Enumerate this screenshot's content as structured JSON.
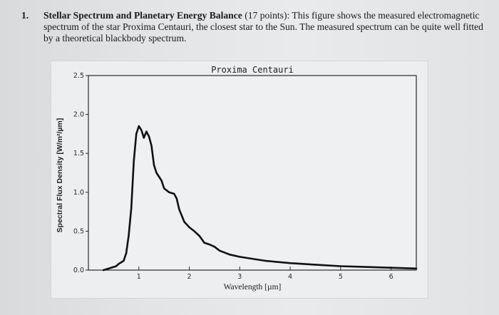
{
  "question": {
    "number": "1.",
    "title": "Stellar Spectrum and Planetary Energy Balance",
    "points": "(17 points):",
    "body": "This figure shows the measured electromagnetic spectrum of the star Proxima Centauri, the closest star to the Sun. The measured spectrum can be quite well fitted by a theoretical blackbody spectrum."
  },
  "chart_data": {
    "type": "line",
    "title": "Proxima Centauri",
    "xlabel": "Wavelength [µm]",
    "ylabel": "Spectral Flux Density [W/m²/µm]",
    "xlim": [
      0.0,
      6.5
    ],
    "ylim": [
      0.0,
      2.5
    ],
    "xticks": [
      "1",
      "2",
      "3",
      "4",
      "5",
      "6"
    ],
    "yticks": [
      "0.0",
      "0.5",
      "1.0",
      "1.5",
      "2.0",
      "2.5"
    ],
    "grid": false,
    "legend": "none",
    "series": [
      {
        "color": "#111111",
        "x": [
          0.3,
          0.45,
          0.55,
          0.6,
          0.65,
          0.7,
          0.75,
          0.8,
          0.85,
          0.9,
          0.95,
          1.0,
          1.05,
          1.1,
          1.15,
          1.2,
          1.25,
          1.3,
          1.35,
          1.4,
          1.45,
          1.5,
          1.6,
          1.7,
          1.75,
          1.8,
          1.9,
          2.0,
          2.1,
          2.2,
          2.3,
          2.4,
          2.5,
          2.6,
          2.8,
          3.0,
          3.5,
          4.0,
          4.5,
          5.0,
          5.5,
          6.0,
          6.5
        ],
        "y": [
          0.0,
          0.03,
          0.05,
          0.08,
          0.1,
          0.12,
          0.22,
          0.45,
          0.8,
          1.4,
          1.75,
          1.85,
          1.8,
          1.7,
          1.78,
          1.72,
          1.6,
          1.35,
          1.25,
          1.2,
          1.15,
          1.05,
          1.0,
          0.98,
          0.92,
          0.78,
          0.62,
          0.55,
          0.5,
          0.44,
          0.35,
          0.33,
          0.3,
          0.25,
          0.2,
          0.17,
          0.12,
          0.09,
          0.07,
          0.05,
          0.04,
          0.03,
          0.02
        ]
      }
    ]
  }
}
